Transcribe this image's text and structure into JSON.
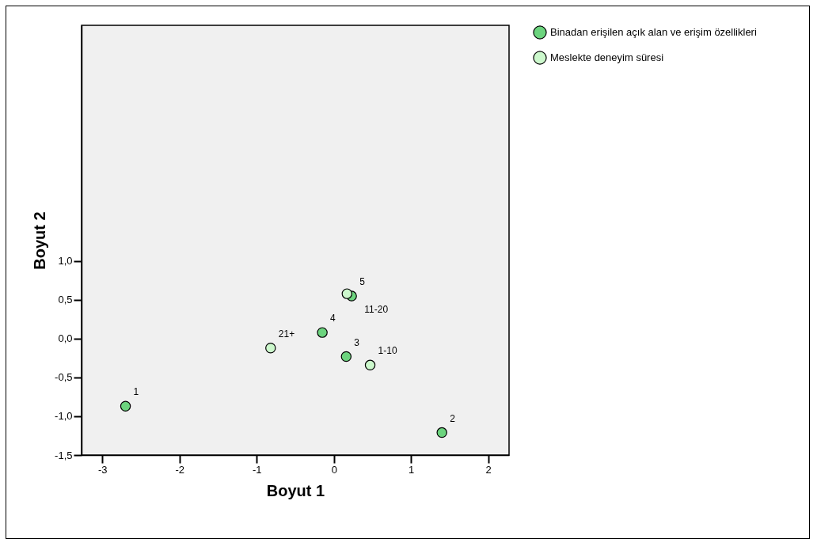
{
  "chart_data": {
    "type": "scatter",
    "xlabel": "Boyut 1",
    "ylabel": "Boyut 2",
    "xlim": [
      -3.27,
      2.27
    ],
    "ylim": [
      -1.5,
      4.04
    ],
    "xticks": [
      -3,
      -2,
      -1,
      0,
      1,
      2
    ],
    "yticks": [
      {
        "value": -1.5,
        "label": "-1,5"
      },
      {
        "value": -1,
        "label": "-1,0"
      },
      {
        "value": -0.5,
        "label": "-0,5"
      },
      {
        "value": 0,
        "label": "0,0"
      },
      {
        "value": 0.5,
        "label": "0,5"
      },
      {
        "value": 1,
        "label": "1,0"
      }
    ],
    "grid": false,
    "legend": "top right",
    "marker": "circle",
    "series": [
      {
        "name": "Binadan erişilen açık alan ve erişim özellikleri",
        "color": "#6cd47e",
        "x": [
          -2.7,
          1.4,
          0.16,
          -0.15,
          0.23
        ],
        "values": [
          -0.87,
          -1.21,
          -0.23,
          0.08,
          0.55
        ]
      },
      {
        "name": "Meslekte deneyim süresi",
        "color": "#ccf8cc",
        "x": [
          0.47,
          0.17,
          -0.82
        ],
        "values": [
          -0.34,
          0.58,
          -0.12
        ]
      }
    ],
    "annotations": [
      {
        "text": "1",
        "x": -2.7,
        "y": -0.87
      },
      {
        "text": "2",
        "x": 1.4,
        "y": -1.21
      },
      {
        "text": "3",
        "x": 0.16,
        "y": -0.23
      },
      {
        "text": "4",
        "x": -0.15,
        "y": 0.08
      },
      {
        "text": "5",
        "x": 0.23,
        "y": 0.55
      },
      {
        "text": "1-10",
        "x": 0.47,
        "y": -0.34
      },
      {
        "text": "11-20",
        "x": 0.17,
        "y": 0.58
      },
      {
        "text": "21+",
        "x": -0.82,
        "y": -0.12
      }
    ]
  }
}
